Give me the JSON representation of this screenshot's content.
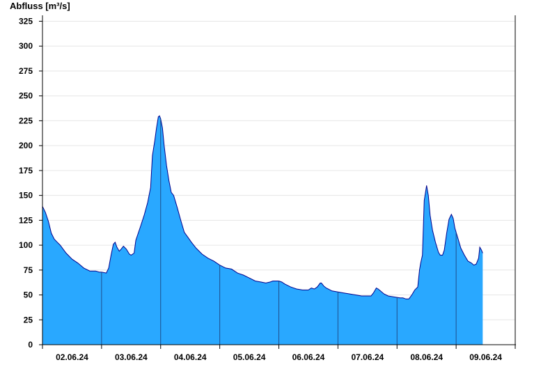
{
  "chart_data": {
    "type": "area",
    "ylabel": "Abfluss [m³/s]",
    "ylim": [
      0,
      330
    ],
    "yticks": [
      0,
      25,
      50,
      75,
      100,
      125,
      150,
      175,
      200,
      225,
      250,
      275,
      300,
      325
    ],
    "xlim": [
      0,
      8
    ],
    "xticks": [
      {
        "x": 0.5,
        "label": "02.06.24"
      },
      {
        "x": 1.5,
        "label": "03.06.24"
      },
      {
        "x": 2.5,
        "label": "04.06.24"
      },
      {
        "x": 3.5,
        "label": "05.06.24"
      },
      {
        "x": 4.5,
        "label": "06.06.24"
      },
      {
        "x": 5.5,
        "label": "07.06.24"
      },
      {
        "x": 6.5,
        "label": "08.06.24"
      },
      {
        "x": 7.5,
        "label": "09.06.24"
      }
    ],
    "day_separators": [
      1,
      2,
      3,
      4,
      5,
      6,
      7
    ],
    "grid": true,
    "colors": {
      "fill": "#29a8ff",
      "line": "#00008b",
      "grid": "#e6e6e6"
    },
    "series": [
      {
        "values": [
          [
            0.0,
            139
          ],
          [
            0.05,
            133
          ],
          [
            0.1,
            124
          ],
          [
            0.15,
            112
          ],
          [
            0.2,
            106
          ],
          [
            0.25,
            103
          ],
          [
            0.3,
            100
          ],
          [
            0.35,
            96
          ],
          [
            0.4,
            92
          ],
          [
            0.5,
            86
          ],
          [
            0.6,
            82
          ],
          [
            0.7,
            77
          ],
          [
            0.8,
            74
          ],
          [
            0.9,
            74
          ],
          [
            0.96,
            73
          ],
          [
            1.0,
            73
          ],
          [
            1.08,
            72
          ],
          [
            1.12,
            77
          ],
          [
            1.16,
            90
          ],
          [
            1.2,
            101
          ],
          [
            1.23,
            103
          ],
          [
            1.26,
            98
          ],
          [
            1.3,
            94
          ],
          [
            1.33,
            96
          ],
          [
            1.37,
            99
          ],
          [
            1.42,
            96
          ],
          [
            1.47,
            91
          ],
          [
            1.5,
            90
          ],
          [
            1.55,
            92
          ],
          [
            1.58,
            105
          ],
          [
            1.62,
            112
          ],
          [
            1.66,
            119
          ],
          [
            1.72,
            130
          ],
          [
            1.78,
            143
          ],
          [
            1.83,
            158
          ],
          [
            1.86,
            190
          ],
          [
            1.9,
            205
          ],
          [
            1.93,
            218
          ],
          [
            1.96,
            229
          ],
          [
            1.98,
            230
          ],
          [
            2.0,
            227
          ],
          [
            2.03,
            218
          ],
          [
            2.06,
            200
          ],
          [
            2.1,
            180
          ],
          [
            2.14,
            165
          ],
          [
            2.18,
            153
          ],
          [
            2.22,
            150
          ],
          [
            2.28,
            138
          ],
          [
            2.34,
            125
          ],
          [
            2.4,
            113
          ],
          [
            2.46,
            108
          ],
          [
            2.52,
            103
          ],
          [
            2.6,
            97
          ],
          [
            2.7,
            91
          ],
          [
            2.8,
            87
          ],
          [
            2.9,
            84
          ],
          [
            3.0,
            80
          ],
          [
            3.1,
            77
          ],
          [
            3.2,
            76
          ],
          [
            3.3,
            72
          ],
          [
            3.4,
            70
          ],
          [
            3.5,
            67
          ],
          [
            3.6,
            64
          ],
          [
            3.7,
            63
          ],
          [
            3.78,
            62
          ],
          [
            3.85,
            63
          ],
          [
            3.9,
            64
          ],
          [
            4.0,
            64
          ],
          [
            4.05,
            63
          ],
          [
            4.1,
            61
          ],
          [
            4.2,
            58
          ],
          [
            4.3,
            56
          ],
          [
            4.4,
            55
          ],
          [
            4.5,
            55
          ],
          [
            4.55,
            57
          ],
          [
            4.6,
            56
          ],
          [
            4.65,
            58
          ],
          [
            4.7,
            62
          ],
          [
            4.72,
            62
          ],
          [
            4.76,
            59
          ],
          [
            4.8,
            57
          ],
          [
            4.9,
            54
          ],
          [
            5.0,
            53
          ],
          [
            5.1,
            52
          ],
          [
            5.2,
            51
          ],
          [
            5.3,
            50
          ],
          [
            5.4,
            49
          ],
          [
            5.5,
            49
          ],
          [
            5.56,
            49
          ],
          [
            5.6,
            52
          ],
          [
            5.65,
            57
          ],
          [
            5.68,
            56
          ],
          [
            5.72,
            54
          ],
          [
            5.78,
            51
          ],
          [
            5.85,
            49
          ],
          [
            5.95,
            48
          ],
          [
            6.05,
            47
          ],
          [
            6.1,
            47
          ],
          [
            6.15,
            46
          ],
          [
            6.2,
            46
          ],
          [
            6.25,
            50
          ],
          [
            6.3,
            55
          ],
          [
            6.35,
            58
          ],
          [
            6.38,
            75
          ],
          [
            6.4,
            82
          ],
          [
            6.43,
            90
          ],
          [
            6.46,
            145
          ],
          [
            6.5,
            160
          ],
          [
            6.53,
            150
          ],
          [
            6.56,
            130
          ],
          [
            6.6,
            115
          ],
          [
            6.65,
            103
          ],
          [
            6.7,
            93
          ],
          [
            6.73,
            90
          ],
          [
            6.77,
            90
          ],
          [
            6.8,
            95
          ],
          [
            6.84,
            112
          ],
          [
            6.88,
            126
          ],
          [
            6.92,
            131
          ],
          [
            6.95,
            127
          ],
          [
            6.98,
            117
          ],
          [
            7.03,
            107
          ],
          [
            7.08,
            97
          ],
          [
            7.14,
            90
          ],
          [
            7.2,
            84
          ],
          [
            7.26,
            82
          ],
          [
            7.3,
            80
          ],
          [
            7.34,
            81
          ],
          [
            7.38,
            87
          ],
          [
            7.4,
            98
          ],
          [
            7.43,
            95
          ],
          [
            7.45,
            92
          ]
        ]
      }
    ]
  }
}
